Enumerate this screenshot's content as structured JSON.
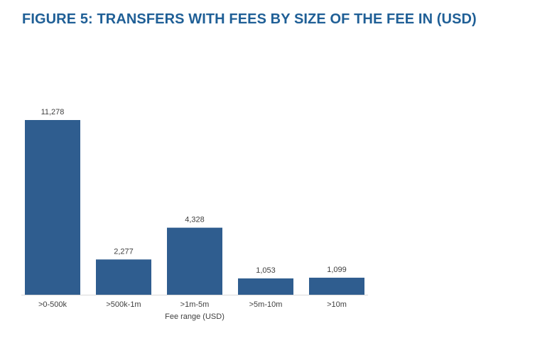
{
  "figure": {
    "title": "FIGURE 5: TRANSFERS WITH FEES BY SIZE OF THE FEE IN (USD)"
  },
  "colors": {
    "title": "#1f5f96",
    "bar": "#2f5d8f",
    "baseline": "#d9d9d9",
    "text": "#404040"
  },
  "chart_data": {
    "type": "bar",
    "title": "FIGURE 5: TRANSFERS WITH FEES BY SIZE OF THE FEE IN (USD)",
    "categories": [
      ">0-500k",
      ">500k-1m",
      ">1m-5m",
      ">5m-10m",
      ">10m"
    ],
    "values": [
      11278,
      2277,
      4328,
      1053,
      1099
    ],
    "value_labels": [
      "11,278",
      "2,277",
      "4,328",
      "1,053",
      "1,099"
    ],
    "xlabel": "Fee range (USD)",
    "ylabel": "",
    "ylim": [
      0,
      11278
    ],
    "grid": false,
    "legend": "none"
  }
}
